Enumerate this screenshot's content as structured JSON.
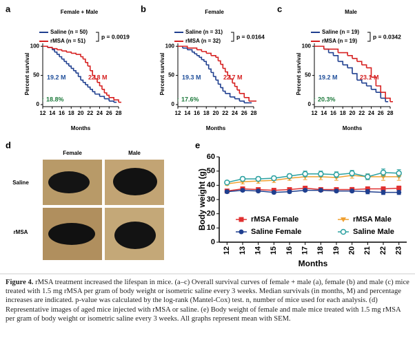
{
  "chart_data": [
    {
      "type": "survival",
      "panel": "a",
      "title": "Female + Male",
      "p_value": "p = 0.0019",
      "xlabel": "Months",
      "ylabel": "Percent survival",
      "xlim": [
        12,
        28
      ],
      "xticks": [
        12,
        14,
        16,
        18,
        20,
        22,
        24,
        26,
        28
      ],
      "ylim": [
        0,
        105
      ],
      "yticks": [
        0,
        50,
        100
      ],
      "series": [
        {
          "name": "Saline (n = 50)",
          "color": "#1f3f8f",
          "x": [
            12,
            13,
            14,
            14.5,
            15,
            15.5,
            16,
            16.5,
            17,
            17.5,
            18,
            18.5,
            19,
            19.5,
            20,
            20.5,
            21,
            21.5,
            22,
            22.5,
            23,
            24,
            25,
            26,
            27
          ],
          "values": [
            100,
            98,
            94,
            90,
            86,
            82,
            78,
            74,
            70,
            66,
            62,
            58,
            54,
            48,
            42,
            38,
            34,
            30,
            26,
            22,
            18,
            14,
            10,
            6,
            4
          ]
        },
        {
          "name": "rMSA (n = 51)",
          "color": "#d62020",
          "x": [
            12,
            13,
            14,
            15,
            16,
            17,
            18,
            19,
            20,
            20.5,
            21,
            21.5,
            22,
            22.5,
            23,
            23.5,
            24,
            24.5,
            25,
            25.5,
            26,
            27,
            28
          ],
          "values": [
            100,
            98,
            96,
            94,
            92,
            90,
            88,
            86,
            82,
            78,
            72,
            66,
            58,
            50,
            44,
            38,
            32,
            26,
            20,
            16,
            12,
            8,
            4
          ]
        }
      ],
      "annotations": [
        {
          "text": "19.2 M",
          "color": "#1f4e9a"
        },
        {
          "text": "22.8 M",
          "color": "#d62020"
        },
        {
          "text": "↑ 18.8%",
          "color": "#1e7a3c"
        }
      ]
    },
    {
      "type": "survival",
      "panel": "b",
      "title": "Female",
      "p_value": "p = 0.0164",
      "xlabel": "Months",
      "ylabel": "Percent survival",
      "xlim": [
        12,
        28
      ],
      "xticks": [
        12,
        14,
        16,
        18,
        20,
        22,
        24,
        26,
        28
      ],
      "ylim": [
        0,
        105
      ],
      "yticks": [
        0,
        50,
        100
      ],
      "series": [
        {
          "name": "Saline (n = 31)",
          "color": "#1f3f8f",
          "x": [
            12,
            13,
            14,
            15,
            15.5,
            16,
            16.5,
            17,
            17.5,
            18,
            18.5,
            19,
            19.5,
            20,
            20.5,
            21,
            21.5,
            22,
            23,
            24,
            25,
            26,
            27
          ],
          "values": [
            100,
            97,
            94,
            90,
            87,
            84,
            81,
            77,
            74,
            68,
            61,
            55,
            48,
            42,
            35,
            29,
            23,
            19,
            13,
            10,
            6,
            3,
            3
          ]
        },
        {
          "name": "rMSA (n = 32)",
          "color": "#d62020",
          "x": [
            12,
            14,
            16,
            17,
            18,
            19,
            20,
            20.5,
            21,
            21.5,
            22,
            22.5,
            23,
            23.5,
            24,
            24.5,
            25,
            26,
            27,
            28
          ],
          "values": [
            100,
            97,
            94,
            91,
            88,
            84,
            81,
            75,
            69,
            62,
            56,
            50,
            44,
            37,
            31,
            25,
            19,
            12,
            6,
            6
          ]
        }
      ],
      "annotations": [
        {
          "text": "19.3 M",
          "color": "#1f4e9a"
        },
        {
          "text": "22.7 M",
          "color": "#d62020"
        },
        {
          "text": "↑ 17.6%",
          "color": "#1e7a3c"
        }
      ]
    },
    {
      "type": "survival",
      "panel": "c",
      "title": "Male",
      "p_value": "p = 0.0342",
      "xlabel": "Months",
      "ylabel": "Percent survival",
      "xlim": [
        12,
        28
      ],
      "xticks": [
        12,
        14,
        16,
        18,
        20,
        22,
        24,
        26,
        28
      ],
      "ylim": [
        0,
        105
      ],
      "yticks": [
        0,
        50,
        100
      ],
      "series": [
        {
          "name": "Saline (n = 19)",
          "color": "#1f3f8f",
          "x": [
            12,
            14,
            15,
            16,
            17,
            18,
            19,
            20,
            21,
            22,
            23,
            24,
            25,
            26,
            27
          ],
          "values": [
            100,
            95,
            89,
            84,
            74,
            68,
            63,
            53,
            42,
            37,
            32,
            26,
            21,
            11,
            5
          ]
        },
        {
          "name": "rMSA (n = 19)",
          "color": "#d62020",
          "x": [
            12,
            14,
            17,
            19,
            20,
            21,
            22,
            23,
            24,
            25,
            26,
            27,
            28
          ],
          "values": [
            100,
            95,
            89,
            84,
            79,
            74,
            68,
            63,
            47,
            32,
            21,
            11,
            5
          ]
        }
      ],
      "annotations": [
        {
          "text": "19.2 M",
          "color": "#1f4e9a"
        },
        {
          "text": "23.1 M",
          "color": "#d62020"
        },
        {
          "text": "↑ 20.3%",
          "color": "#1e7a3c"
        }
      ]
    },
    {
      "type": "line",
      "panel": "e",
      "xlabel": "Months",
      "ylabel": "Body weight (g)",
      "x": [
        12,
        13,
        14,
        15,
        16,
        17,
        18,
        19,
        20,
        21,
        22,
        23
      ],
      "xlim": [
        11.5,
        23.5
      ],
      "xticks": [
        12,
        13,
        14,
        15,
        16,
        17,
        18,
        19,
        20,
        21,
        22,
        23
      ],
      "ylim": [
        0,
        60
      ],
      "yticks": [
        0,
        10,
        20,
        30,
        40,
        50,
        60
      ],
      "series": [
        {
          "name": "rMSA Female",
          "color": "#e03030",
          "marker": "square",
          "values": [
            36,
            37.5,
            37,
            36.5,
            37,
            38,
            37,
            37,
            37,
            37.5,
            37.5,
            38
          ],
          "errors": [
            1,
            1,
            1,
            1,
            1,
            1,
            1,
            1,
            1.5,
            1.5,
            1.5,
            1.5
          ]
        },
        {
          "name": "rMSA Male",
          "color": "#f0a030",
          "marker": "triangle",
          "values": [
            41,
            42.5,
            43,
            43.5,
            45,
            46,
            46,
            45.5,
            47,
            46,
            46,
            46
          ],
          "errors": [
            1,
            1.5,
            1.5,
            1.5,
            1.5,
            2,
            2,
            2,
            2,
            2,
            2.5,
            2.5
          ]
        },
        {
          "name": "Saline Female",
          "color": "#1f3f8f",
          "marker": "circle",
          "values": [
            35.5,
            36.5,
            36,
            35,
            35.5,
            36.5,
            36.5,
            36,
            36,
            35.5,
            35,
            35
          ],
          "errors": [
            1,
            1,
            1,
            1,
            1,
            1,
            1,
            1,
            1,
            1.5,
            1.5,
            1.5
          ]
        },
        {
          "name": "Saline Male",
          "color": "#2aa0a0",
          "marker": "open-circle",
          "values": [
            42,
            44.5,
            44.5,
            45,
            46.5,
            48,
            48,
            47.5,
            48.5,
            46,
            49,
            48.5
          ],
          "errors": [
            1,
            1.5,
            1.5,
            1.5,
            1.5,
            2,
            2,
            2,
            2,
            2,
            2.5,
            2.5
          ]
        }
      ]
    }
  ],
  "panel_d": {
    "label": "d",
    "columns": [
      "Female",
      "Male"
    ],
    "rows": [
      "Saline",
      "rMSA"
    ]
  },
  "caption": {
    "label": "Figure 4.",
    "text": "rMSA treatment increased the lifespan in mice. (a–c) Overall survival curves of female + male (a), female (b) and male (c) mice treated with 1.5 mg rMSA per gram of body weight or isometric saline every 3 weeks. Median survivals (in months, M) and percentage increases are indicated. p-value was calculated by the log-rank (Mantel-Cox) test. n, number of mice used for each analysis. (d) Representative images of aged mice injected with rMSA or saline. (e) Body weight of female and male mice treated with 1.5 mg rMSA per gram of body weight or isometric saline every 3 weeks. All graphs represent mean with SEM."
  }
}
